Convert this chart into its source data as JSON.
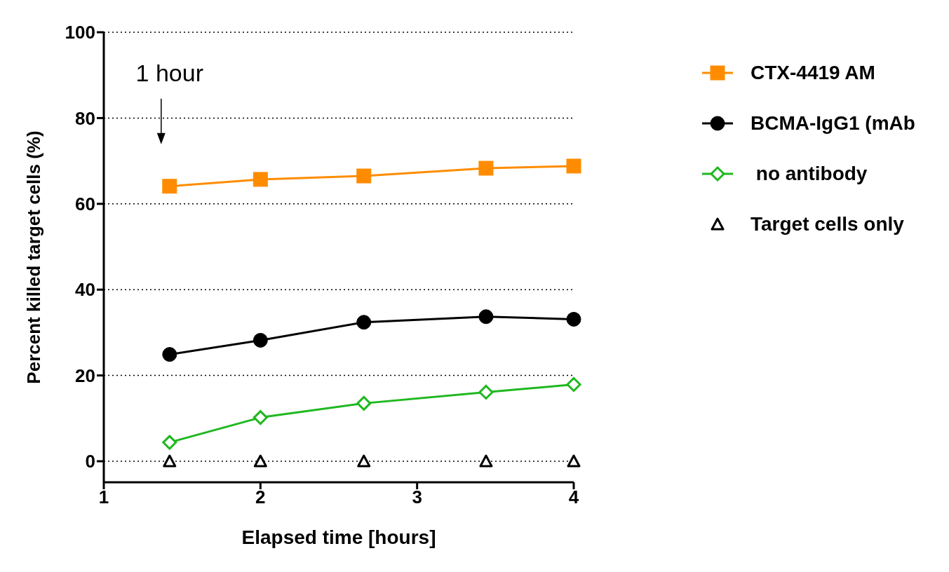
{
  "chart_data": {
    "type": "line",
    "xlabel": "Elapsed time [hours]",
    "ylabel": "Percent killed target cells  (%)",
    "annotations": [
      "1 hour"
    ],
    "x": [
      1.42,
      2,
      2.66,
      3.44,
      4
    ],
    "series": [
      {
        "name": "CTX-4419 AM",
        "color": "#ff8c00",
        "marker": "square",
        "values": [
          64.1,
          65.7,
          66.5,
          68.3,
          68.8
        ]
      },
      {
        "name": "BCMA-IgG1 (mAb",
        "color": "#000000",
        "marker": "circle",
        "values": [
          24.9,
          28.2,
          32.4,
          33.7,
          33.1
        ]
      },
      {
        "name": " no antibody",
        "color": "#1fb81f",
        "marker": "diamond",
        "values": [
          4.4,
          10.2,
          13.5,
          16.1,
          17.9
        ]
      },
      {
        "name": "Target cells only",
        "type": "scatter",
        "color": "#000000",
        "marker": "triangle",
        "values": [
          0,
          0,
          0,
          0,
          0
        ]
      }
    ],
    "xlim": [
      1,
      4
    ],
    "xticks": [
      1,
      2,
      3,
      4
    ],
    "ylim": [
      0,
      100
    ],
    "yticks": [
      0,
      20,
      40,
      60,
      80,
      100
    ],
    "grid": "y",
    "legend": "right"
  }
}
